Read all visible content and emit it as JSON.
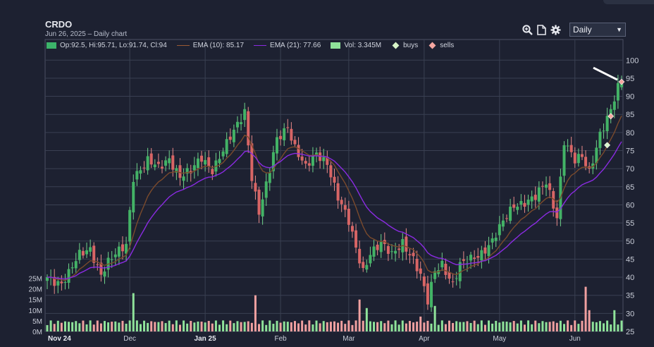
{
  "header": {
    "ticker": "CRDO",
    "subtitle": "Jun 26, 2025 – Daily chart"
  },
  "toolbar": {
    "timeframe": "Daily",
    "icons": [
      "zoom-in-icon",
      "document-icon",
      "gear-icon"
    ]
  },
  "legend": {
    "ohlc": "Op:92.5, Hi:95.71, Lo:91.74, Cl:94",
    "ema10": "EMA (10): 85.17",
    "ema21": "EMA (21): 77.66",
    "vol": "Vol: 3.345M",
    "buys": "buys",
    "sells": "sells"
  },
  "colors": {
    "up": "#8fe39a",
    "down": "#f0a0a0",
    "up_body": "#43b366",
    "down_body": "#d86565",
    "ema10": "#7a4a2c",
    "ema21": "#8a2be2",
    "grid": "#3a4052",
    "background": "#1d2131"
  },
  "chart_data": {
    "type": "candlestick",
    "title": "CRDO",
    "subtitle": "Jun 26, 2025 – Daily chart",
    "x_labels": [
      "Nov 24",
      "Dec",
      "Jan 25",
      "Feb",
      "Mar",
      "Apr",
      "May",
      "Jun"
    ],
    "y_price_range": [
      25,
      102
    ],
    "y_price_ticks": [
      25,
      30,
      35,
      40,
      45,
      50,
      55,
      60,
      65,
      70,
      75,
      80,
      85,
      90,
      95,
      100
    ],
    "y_volume_range": [
      0,
      30
    ],
    "y_volume_ticks": [
      0,
      5,
      10,
      15,
      20,
      25
    ],
    "y_volume_tick_labels": [
      "0M",
      "5M",
      "10M",
      "15M",
      "20M",
      "25M"
    ],
    "month_index": [
      1,
      23,
      44,
      65,
      84,
      105,
      126,
      147
    ],
    "ohlc_last": {
      "open": 92.5,
      "high": 95.71,
      "low": 91.74,
      "close": 94,
      "volume_m": 3.345
    },
    "ema10_last": 85.17,
    "ema21_last": 77.66,
    "close_keyframes": [
      [
        0,
        40
      ],
      [
        4,
        38.5
      ],
      [
        6,
        41
      ],
      [
        9,
        46
      ],
      [
        12,
        48
      ],
      [
        15,
        41
      ],
      [
        17,
        44
      ],
      [
        20,
        47
      ],
      [
        22,
        49
      ],
      [
        24,
        68
      ],
      [
        28,
        72
      ],
      [
        31,
        70
      ],
      [
        34,
        73
      ],
      [
        37,
        68
      ],
      [
        40,
        69
      ],
      [
        43,
        73
      ],
      [
        46,
        70
      ],
      [
        49,
        75
      ],
      [
        52,
        80
      ],
      [
        55,
        86
      ],
      [
        57,
        68
      ],
      [
        59,
        58
      ],
      [
        61,
        65
      ],
      [
        64,
        78
      ],
      [
        67,
        82
      ],
      [
        69,
        76
      ],
      [
        72,
        70
      ],
      [
        75,
        74
      ],
      [
        78,
        72
      ],
      [
        81,
        62
      ],
      [
        84,
        55
      ],
      [
        86,
        48
      ],
      [
        88,
        42
      ],
      [
        90,
        47
      ],
      [
        93,
        49
      ],
      [
        96,
        46
      ],
      [
        99,
        50
      ],
      [
        102,
        45
      ],
      [
        104,
        40
      ],
      [
        106,
        33
      ],
      [
        108,
        42
      ],
      [
        110,
        44
      ],
      [
        113,
        38
      ],
      [
        115,
        43
      ],
      [
        118,
        45
      ],
      [
        121,
        47
      ],
      [
        124,
        50
      ],
      [
        127,
        55
      ],
      [
        130,
        60
      ],
      [
        133,
        61
      ],
      [
        136,
        62
      ],
      [
        139,
        66
      ],
      [
        142,
        57
      ],
      [
        144,
        78
      ],
      [
        147,
        72
      ],
      [
        149,
        73
      ],
      [
        151,
        69
      ],
      [
        154,
        80
      ],
      [
        157,
        86
      ],
      [
        159,
        92
      ],
      [
        160,
        94
      ]
    ],
    "volume_spikes": {
      "24": 18,
      "58": 17,
      "87": 15,
      "89": 11,
      "104": 7,
      "108": 12,
      "150": 21,
      "151": 10,
      "158": 10
    },
    "volume_base": 3,
    "buys": [
      [
        156,
        76.5
      ]
    ],
    "sells": [
      [
        157,
        84.5
      ],
      [
        160,
        94
      ]
    ],
    "annotation": "arrow pointing to last candle"
  }
}
